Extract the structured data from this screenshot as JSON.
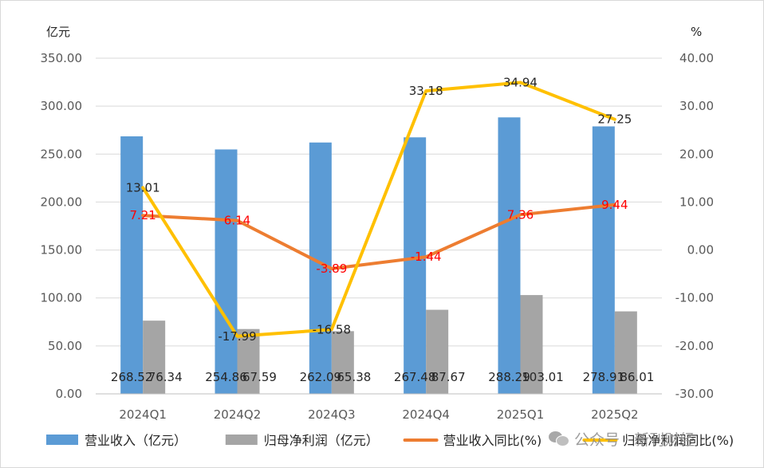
{
  "chart_data": {
    "type": "bar",
    "categories": [
      "2024Q1",
      "2024Q2",
      "2024Q3",
      "2024Q4",
      "2025Q1",
      "2025Q2"
    ],
    "y_left_label": "亿元",
    "y_right_label": "%",
    "y_left_ticks": [
      "0.00",
      "50.00",
      "100.00",
      "150.00",
      "200.00",
      "250.00",
      "300.00",
      "350.00"
    ],
    "y_right_ticks": [
      "-30.00",
      "-20.00",
      "-10.00",
      "0.00",
      "10.00",
      "20.00",
      "30.00",
      "40.00"
    ],
    "y_left_range": [
      0,
      350
    ],
    "y_right_range": [
      -30,
      40
    ],
    "grid": true,
    "legend_position": "bottom",
    "series": [
      {
        "name": "营业收入（亿元）",
        "type": "bar",
        "axis": "left",
        "color": "#5b9bd5",
        "values": [
          268.52,
          254.86,
          262.09,
          267.48,
          288.29,
          278.91
        ],
        "labels": [
          "268.52",
          "254.86",
          "262.09",
          "267.48",
          "288.29",
          "278.91"
        ]
      },
      {
        "name": "归母净利润（亿元）",
        "type": "bar",
        "axis": "left",
        "color": "#a5a5a5",
        "values": [
          76.34,
          67.59,
          65.38,
          87.67,
          103.01,
          86.01
        ],
        "labels": [
          "76.34",
          "67.59",
          "65.38",
          "87.67",
          "103.01",
          "86.01"
        ]
      },
      {
        "name": "营业收入同比(%)",
        "type": "line",
        "axis": "right",
        "color": "#ed7d31",
        "label_color": "#ff0000",
        "values": [
          7.21,
          6.14,
          -3.89,
          -1.44,
          7.36,
          9.44
        ],
        "labels": [
          "7.21",
          "6.14",
          "-3.89",
          "-1.44",
          "7.36",
          "9.44"
        ]
      },
      {
        "name": "归母净利润同比(%)",
        "type": "line",
        "axis": "right",
        "color": "#ffc000",
        "label_color": "#262626",
        "values": [
          13.01,
          -17.99,
          -16.58,
          33.18,
          34.94,
          27.25
        ],
        "labels": [
          "13.01",
          "-17.99",
          "-16.58",
          "33.18",
          "34.94",
          "27.25"
        ]
      }
    ]
  },
  "watermark": {
    "text": "公众号 · 新刊财经",
    "icon": "wechat-icon"
  }
}
